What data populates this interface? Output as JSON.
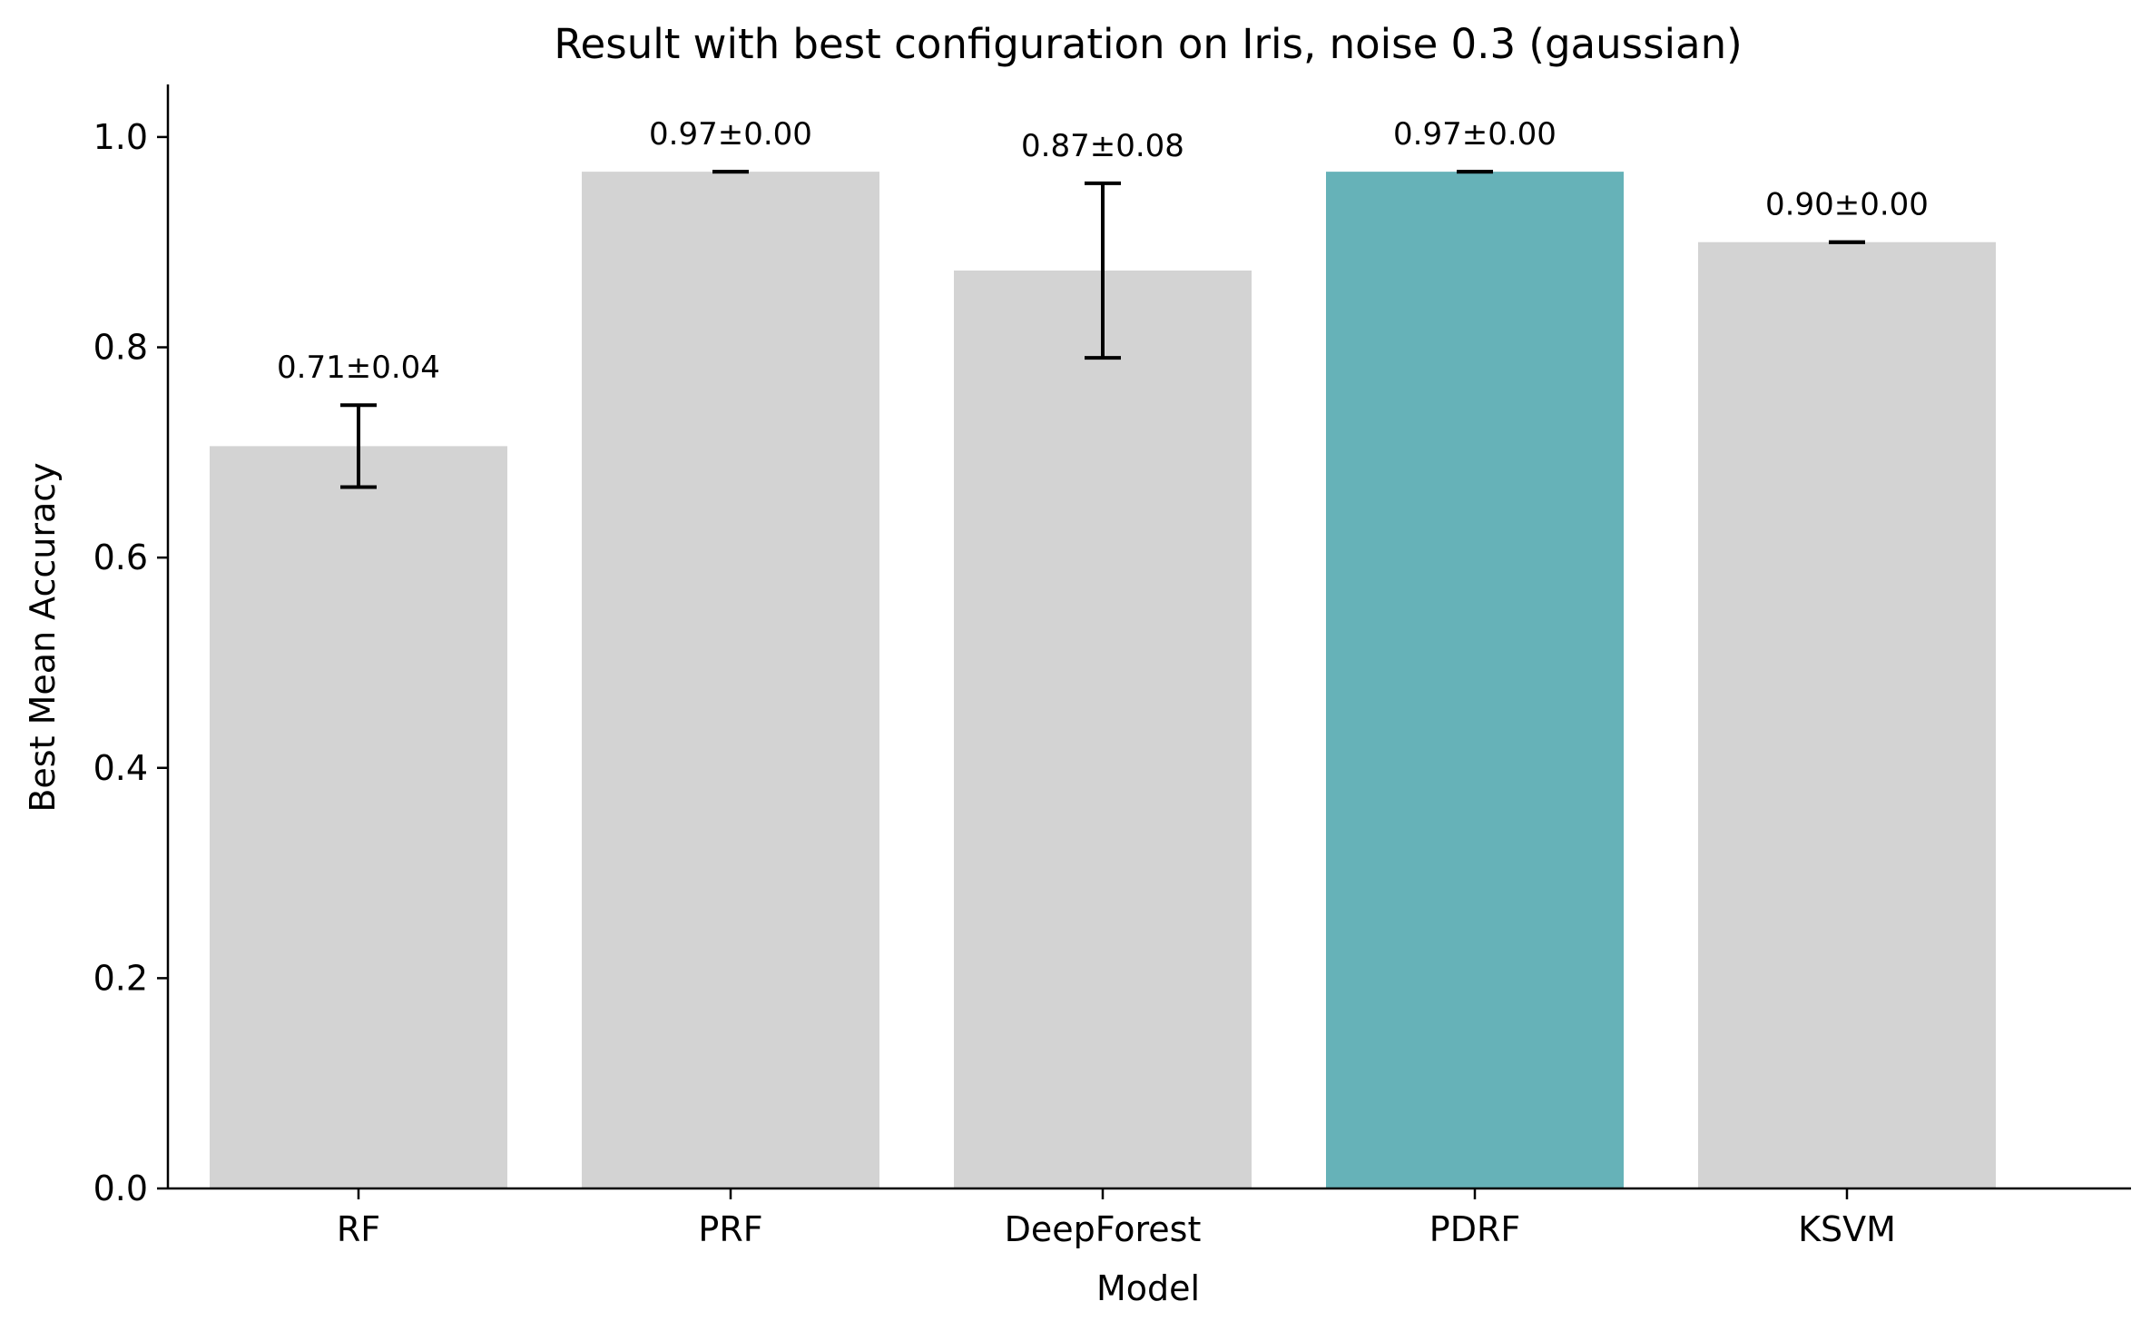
{
  "chart_data": {
    "type": "bar",
    "title": "Result with best configuration on Iris, noise 0.3 (gaussian)",
    "xlabel": "Model",
    "ylabel": "Best Mean Accuracy",
    "categories": [
      "RF",
      "PRF",
      "DeepForest",
      "PDRF",
      "KSVM"
    ],
    "values": [
      0.706,
      0.967,
      0.873,
      0.967,
      0.9
    ],
    "errors": [
      0.039,
      0.0,
      0.083,
      0.0,
      0.0
    ],
    "data_labels": [
      "0.71±0.04",
      "0.97±0.00",
      "0.87±0.08",
      "0.97±0.00",
      "0.90±0.00"
    ],
    "bar_colors": [
      "#d3d3d3",
      "#d3d3d3",
      "#d3d3d3",
      "#66b2b8",
      "#d3d3d3"
    ],
    "highlight_category": "PDRF",
    "ylim": [
      0.0,
      1.05
    ],
    "yticks": [
      0.0,
      0.2,
      0.4,
      0.6,
      0.8,
      1.0
    ],
    "ytick_labels": [
      "0.0",
      "0.2",
      "0.4",
      "0.6",
      "0.8",
      "1.0"
    ],
    "grid": false,
    "legend": "none",
    "spines": "left-bottom"
  }
}
